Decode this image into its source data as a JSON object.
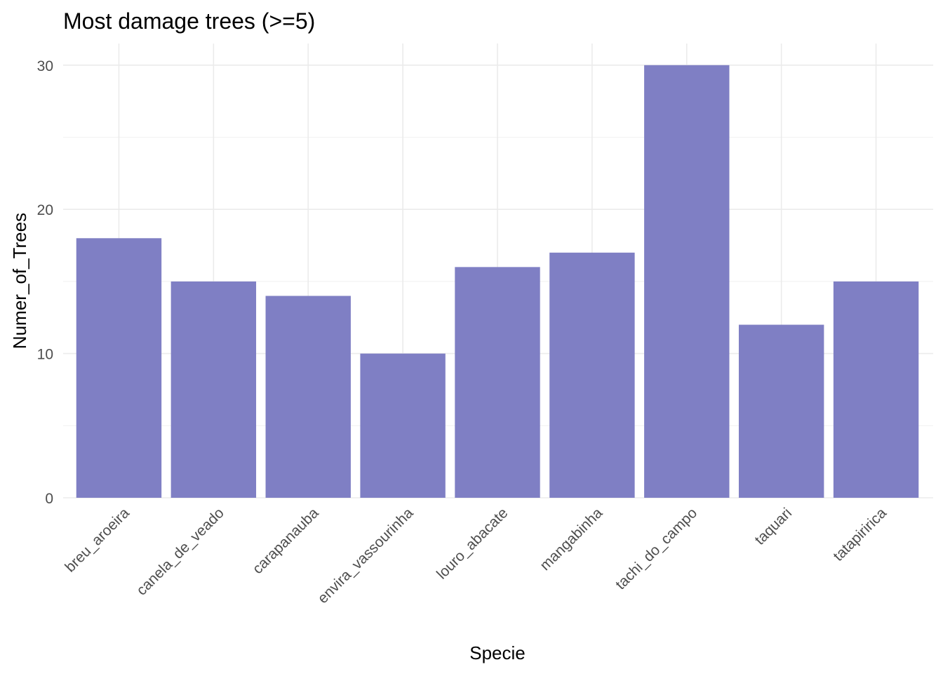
{
  "chart_data": {
    "type": "bar",
    "title": "Most damage trees (>=5)",
    "xlabel": "Specie",
    "ylabel": "Numer_of_Trees",
    "categories": [
      "breu_aroeira",
      "canela_de_veado",
      "carapanauba",
      "envira_vassourinha",
      "louro_abacate",
      "mangabinha",
      "tachi_do_campo",
      "taquari",
      "tatapiririca"
    ],
    "values": [
      18,
      15,
      14,
      10,
      16,
      17,
      30,
      12,
      15
    ],
    "ylim": [
      0,
      30
    ],
    "yticks": [
      0,
      10,
      20,
      30
    ],
    "ytick_labels": [
      "0",
      "10",
      "20",
      "30"
    ],
    "grid": true,
    "colors": {
      "bar": "#7f7fc4"
    }
  }
}
